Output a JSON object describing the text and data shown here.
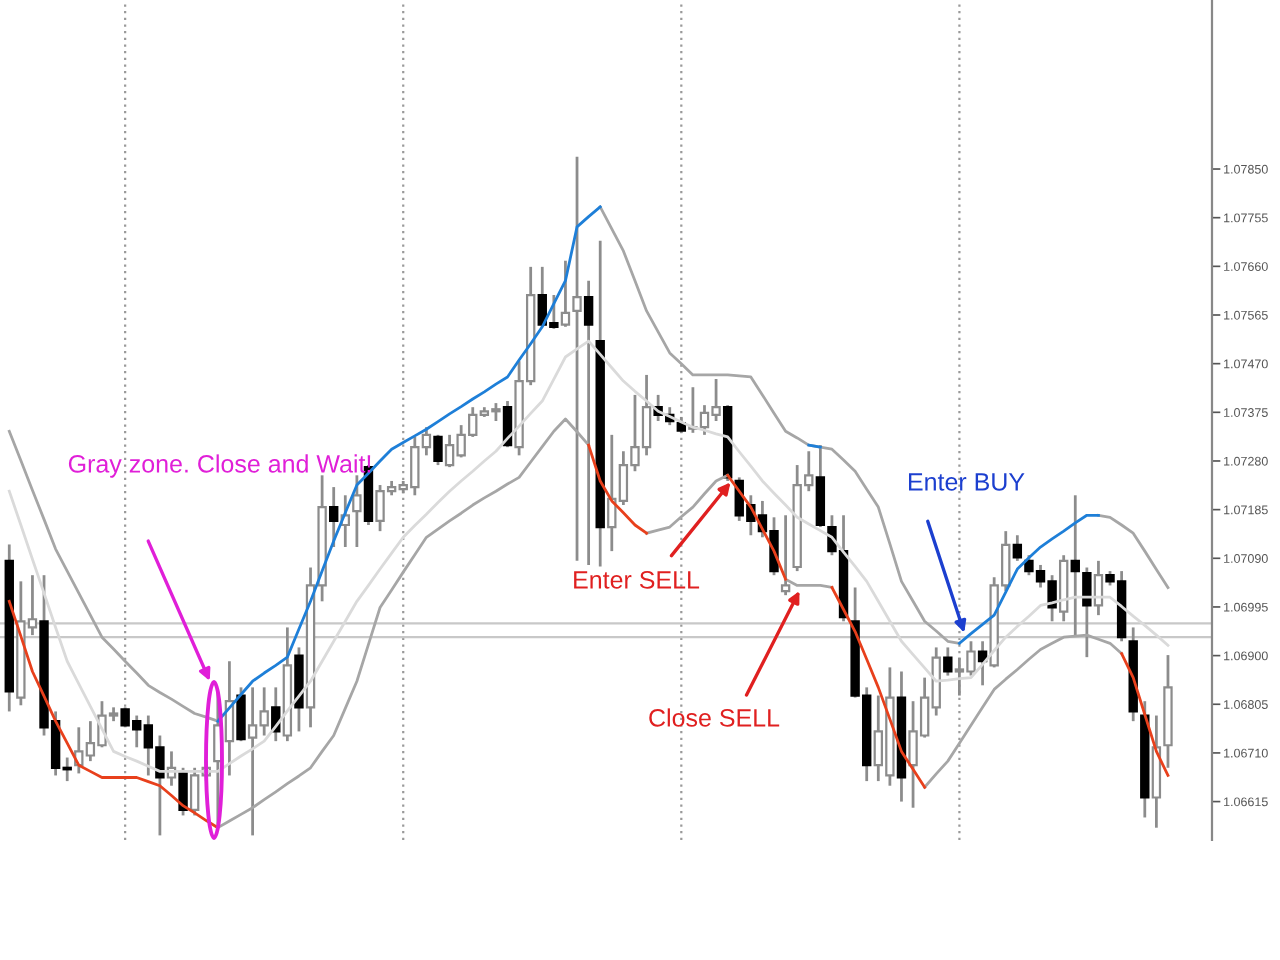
{
  "chart_data": {
    "type": "candlestick",
    "categories": [
      null,
      null,
      null,
      null,
      null,
      null,
      null,
      null,
      null,
      null,
      null,
      null,
      null,
      null,
      null,
      null,
      null,
      null,
      null,
      null,
      null,
      null,
      null,
      null,
      null,
      null,
      null,
      null,
      null,
      null,
      null,
      null,
      null,
      null,
      null,
      null,
      null,
      null,
      null,
      null,
      null,
      null,
      null,
      null,
      null,
      null,
      null,
      null,
      null,
      null,
      null,
      null,
      null,
      null,
      null,
      null,
      null,
      null,
      null,
      null,
      null,
      null,
      null,
      null,
      null,
      null,
      null,
      null,
      null,
      null,
      null,
      null,
      null,
      null,
      null,
      null,
      null,
      null,
      null,
      null,
      null,
      null,
      null,
      null,
      null,
      null,
      null,
      null,
      null,
      null,
      null,
      null,
      null,
      null,
      null,
      null,
      null,
      null,
      null,
      null,
      null
    ],
    "ohlc": [
      [
        1.07085,
        1.07117,
        1.06791,
        1.0683
      ],
      [
        1.06818,
        1.07045,
        1.06803,
        1.06967
      ],
      [
        1.06955,
        1.07057,
        1.0694,
        1.06971
      ],
      [
        1.06967,
        1.07057,
        1.06744,
        1.0676
      ],
      [
        1.06772,
        1.06791,
        1.06666,
        1.06681
      ],
      [
        1.06681,
        1.06701,
        1.06655,
        1.06678
      ],
      [
        1.06686,
        1.0676,
        1.0667,
        1.06713
      ],
      [
        1.06705,
        1.06772,
        1.06694,
        1.06729
      ],
      [
        1.06725,
        1.06811,
        1.06721,
        1.06783
      ],
      [
        1.06783,
        1.06799,
        1.06772,
        1.06787
      ],
      [
        1.06795,
        1.06799,
        1.0676,
        1.06764
      ],
      [
        1.06772,
        1.06783,
        1.06721,
        1.06756
      ],
      [
        1.06764,
        1.06783,
        1.06666,
        1.06721
      ],
      [
        1.06721,
        1.06744,
        1.06549,
        1.06662
      ],
      [
        1.06662,
        1.06713,
        1.06646,
        1.06681
      ],
      [
        1.0667,
        1.06681,
        1.06588,
        1.06599
      ],
      [
        1.06599,
        1.06681,
        1.06588,
        1.06666
      ],
      [
        1.06666,
        1.06694,
        1.06655,
        1.06681
      ],
      [
        1.06694,
        1.0683,
        1.06568,
        1.06764
      ],
      [
        1.06733,
        1.06889,
        1.06666,
        1.06811
      ],
      [
        1.06822,
        1.06838,
        1.06733,
        1.06737
      ],
      [
        1.0674,
        1.06838,
        1.06549,
        1.06764
      ],
      [
        1.06764,
        1.06838,
        1.06744,
        1.06791
      ],
      [
        1.06799,
        1.06838,
        1.06733,
        1.06752
      ],
      [
        1.06744,
        1.06955,
        1.06733,
        1.06881
      ],
      [
        1.069,
        1.06916,
        1.06752,
        1.06799
      ],
      [
        1.06799,
        1.07072,
        1.0676,
        1.07037
      ],
      [
        1.07037,
        1.07252,
        1.07006,
        1.0719
      ],
      [
        1.0719,
        1.07229,
        1.07112,
        1.07163
      ],
      [
        1.07155,
        1.07213,
        1.07112,
        1.07174
      ],
      [
        1.07182,
        1.07252,
        1.07112,
        1.07213
      ],
      [
        1.07268,
        1.07272,
        1.07155,
        1.07163
      ],
      [
        1.07163,
        1.07233,
        1.07143,
        1.07221
      ],
      [
        1.07221,
        1.07241,
        1.07213,
        1.07229
      ],
      [
        1.07225,
        1.07241,
        1.07217,
        1.07233
      ],
      [
        1.07229,
        1.07327,
        1.07213,
        1.07307
      ],
      [
        1.07307,
        1.07346,
        1.07291,
        1.07331
      ],
      [
        1.07327,
        1.07331,
        1.07272,
        1.0728
      ],
      [
        1.07272,
        1.07331,
        1.07268,
        1.07311
      ],
      [
        1.07291,
        1.0735,
        1.07287,
        1.07331
      ],
      [
        1.07331,
        1.07385,
        1.07327,
        1.0737
      ],
      [
        1.0737,
        1.07385,
        1.07366,
        1.07377
      ],
      [
        1.07377,
        1.07393,
        1.07358,
        1.07381
      ],
      [
        1.07385,
        1.07397,
        1.07307,
        1.07311
      ],
      [
        1.07307,
        1.07475,
        1.07291,
        1.07436
      ],
      [
        1.07436,
        1.07659,
        1.07428,
        1.07604
      ],
      [
        1.07604,
        1.07659,
        1.07542,
        1.07546
      ],
      [
        1.07549,
        1.07604,
        1.07538,
        1.07542
      ],
      [
        1.07546,
        1.07671,
        1.07542,
        1.07569
      ],
      [
        1.07573,
        1.07874,
        1.07085,
        1.076
      ],
      [
        1.076,
        1.07632,
        1.07077,
        1.07546
      ],
      [
        1.07514,
        1.0771,
        1.07074,
        1.07151
      ],
      [
        1.07151,
        1.07331,
        1.07104,
        1.07206
      ],
      [
        1.07202,
        1.07299,
        1.07194,
        1.07272
      ],
      [
        1.07272,
        1.07409,
        1.0726,
        1.07307
      ],
      [
        1.07307,
        1.07448,
        1.07291,
        1.07385
      ],
      [
        1.07385,
        1.07409,
        1.07358,
        1.0737
      ],
      [
        1.0737,
        1.07385,
        1.0735,
        1.07358
      ],
      [
        1.07354,
        1.07366,
        1.07335,
        1.07339
      ],
      [
        1.07343,
        1.07424,
        1.07335,
        1.07346
      ],
      [
        1.07346,
        1.07389,
        1.07331,
        1.07374
      ],
      [
        1.0737,
        1.0744,
        1.07358,
        1.07385
      ],
      [
        1.07385,
        1.07389,
        1.07241,
        1.07248
      ],
      [
        1.07241,
        1.07248,
        1.07163,
        1.07174
      ],
      [
        1.07194,
        1.07213,
        1.07135,
        1.07163
      ],
      [
        1.07174,
        1.07202,
        1.07131,
        1.07143
      ],
      [
        1.07143,
        1.0717,
        1.07057,
        1.07065
      ],
      [
        1.07026,
        1.07174,
        1.07018,
        1.07037
      ],
      [
        1.07073,
        1.07272,
        1.07065,
        1.07233
      ],
      [
        1.07233,
        1.07299,
        1.07221,
        1.07252
      ],
      [
        1.07248,
        1.07311,
        1.07151,
        1.07155
      ],
      [
        1.07151,
        1.07174,
        1.07096,
        1.07104
      ],
      [
        1.07104,
        1.07174,
        1.06967,
        1.06975
      ],
      [
        1.06967,
        1.07033,
        1.06818,
        1.06822
      ],
      [
        1.06822,
        1.06838,
        1.06655,
        1.06686
      ],
      [
        1.06686,
        1.06822,
        1.06655,
        1.06752
      ],
      [
        1.06666,
        1.06877,
        1.06646,
        1.06818
      ],
      [
        1.06818,
        1.06869,
        1.06615,
        1.06662
      ],
      [
        1.06686,
        1.06811,
        1.06603,
        1.06752
      ],
      [
        1.06744,
        1.06857,
        1.0674,
        1.06818
      ],
      [
        1.06799,
        1.06916,
        1.06783,
        1.06896
      ],
      [
        1.06896,
        1.06916,
        1.06861,
        1.06869
      ],
      [
        1.06869,
        1.06896,
        1.06822,
        1.06873
      ],
      [
        1.06869,
        1.06928,
        1.06861,
        1.06908
      ],
      [
        1.06908,
        1.06928,
        1.06842,
        1.06889
      ],
      [
        1.06881,
        1.07053,
        1.06877,
        1.07037
      ],
      [
        1.07037,
        1.07143,
        1.07026,
        1.07116
      ],
      [
        1.07116,
        1.07135,
        1.07085,
        1.07092
      ],
      [
        1.07085,
        1.07096,
        1.07057,
        1.07065
      ],
      [
        1.07065,
        1.07077,
        1.07033,
        1.07045
      ],
      [
        1.07045,
        1.07057,
        1.06967,
        1.06994
      ],
      [
        1.06986,
        1.07096,
        1.06967,
        1.07085
      ],
      [
        1.07085,
        1.07213,
        1.0694,
        1.07065
      ],
      [
        1.07061,
        1.07072,
        1.06897,
        1.06998
      ],
      [
        1.06998,
        1.07085,
        1.06979,
        1.07057
      ],
      [
        1.07057,
        1.07065,
        1.07037,
        1.07045
      ],
      [
        1.07045,
        1.07065,
        1.06928,
        1.06936
      ],
      [
        1.06928,
        1.06955,
        1.06772,
        1.06791
      ],
      [
        1.06783,
        1.06811,
        1.06584,
        1.06623
      ],
      [
        1.06623,
        1.06783,
        1.06564,
        1.06721
      ],
      [
        1.06725,
        1.06901,
        1.06681,
        1.06838
      ]
    ],
    "series": [
      {
        "type": "line",
        "color": "#a6a6a6",
        "values": [
          1.07338,
          1.07281,
          1.07223,
          1.07166,
          1.07108,
          1.07065,
          1.07022,
          1.06979,
          1.06936,
          1.06913,
          1.06889,
          1.06866,
          1.06842,
          1.06828,
          1.06815,
          1.06801,
          1.06787,
          1.0678,
          1.06772,
          null,
          null,
          null,
          null,
          null,
          null,
          null,
          null,
          null,
          null,
          null,
          null,
          null,
          null,
          null,
          null,
          null,
          null,
          null,
          null,
          null,
          null,
          null,
          null,
          null,
          null,
          null,
          null,
          null,
          null,
          null,
          null,
          1.07776,
          1.07733,
          1.0769,
          1.07632,
          1.07573,
          1.07532,
          1.07491,
          1.0747,
          1.07448,
          1.07448,
          1.07448,
          1.07448,
          1.07446,
          1.07444,
          1.07409,
          1.07373,
          1.07338,
          1.07325,
          1.07311,
          1.07307,
          1.07303,
          1.07282,
          1.0726,
          1.07225,
          1.0719,
          1.07118,
          1.07045,
          1.07006,
          1.06967,
          1.06948,
          1.06928,
          1.06924,
          null,
          null,
          null,
          null,
          null,
          null,
          null,
          null,
          null,
          null,
          null,
          1.07174,
          1.0717,
          1.07155,
          1.07139,
          1.07104,
          1.07068,
          1.07033
        ]
      },
      {
        "type": "line",
        "color": "#dadada",
        "values": [
          1.07221,
          1.07155,
          1.07088,
          1.07022,
          1.06955,
          1.06889,
          1.06845,
          1.06801,
          1.06757,
          1.06713,
          1.06703,
          1.06694,
          1.06684,
          1.06674,
          1.06674,
          1.06674,
          1.06674,
          1.06674,
          1.06674,
          1.06689,
          1.06704,
          1.06718,
          1.06733,
          1.06762,
          1.06792,
          1.06821,
          1.0685,
          1.06889,
          1.06928,
          1.06967,
          1.07006,
          1.07037,
          1.07069,
          1.071,
          1.07131,
          1.07154,
          1.07176,
          1.07199,
          1.07221,
          1.07241,
          1.0726,
          1.0728,
          1.07299,
          1.07324,
          1.07348,
          1.07373,
          1.07397,
          1.0744,
          1.07483,
          1.07499,
          1.07514,
          1.07488,
          1.07462,
          1.07436,
          1.07416,
          1.07397,
          1.07377,
          1.07367,
          1.07356,
          1.07346,
          1.0734,
          1.07333,
          1.07327,
          1.07298,
          1.0727,
          1.07241,
          1.07217,
          1.07194,
          1.0717,
          1.07157,
          1.07144,
          1.07131,
          1.07102,
          1.07074,
          1.07045,
          1.07006,
          1.06967,
          1.06928,
          1.06902,
          1.06876,
          1.0685,
          1.06852,
          1.06855,
          1.06857,
          1.06883,
          1.0691,
          1.06936,
          1.06957,
          1.06977,
          1.06998,
          1.07003,
          1.07009,
          1.07014,
          1.07014,
          1.07014,
          1.07014,
          1.06996,
          1.06977,
          1.06959,
          1.0694,
          1.0692
        ]
      },
      {
        "type": "line",
        "color": "#a6a6a6",
        "values": [
          null,
          null,
          null,
          null,
          null,
          null,
          null,
          null,
          null,
          null,
          null,
          null,
          null,
          null,
          null,
          null,
          null,
          null,
          1.06564,
          1.06577,
          1.0659,
          1.06603,
          1.06619,
          1.06634,
          1.0665,
          1.06665,
          1.06681,
          1.06713,
          1.06744,
          1.06797,
          1.0685,
          1.06922,
          1.06994,
          1.07028,
          1.07063,
          1.07097,
          1.07131,
          1.07147,
          1.07163,
          1.07178,
          1.07194,
          1.07208,
          1.07221,
          1.07235,
          1.07248,
          1.07278,
          1.07308,
          1.07338,
          1.07362,
          1.07337,
          1.07311,
          null,
          null,
          null,
          null,
          1.07139,
          1.07145,
          1.07151,
          1.07171,
          1.0719,
          1.07216,
          1.07241,
          1.07252,
          null,
          null,
          null,
          null,
          1.07049,
          1.07037,
          1.07037,
          1.07037,
          1.07033,
          null,
          null,
          null,
          null,
          null,
          null,
          null,
          1.06643,
          1.06669,
          1.06694,
          1.06729,
          1.06764,
          1.06799,
          1.06834,
          1.06854,
          1.06873,
          1.06893,
          1.06912,
          1.06924,
          1.06936,
          1.06938,
          1.0694,
          1.06932,
          1.06924,
          1.06904,
          null,
          null,
          null,
          null
        ]
      },
      {
        "type": "line",
        "color": "#1e7fd8",
        "values": [
          null,
          null,
          null,
          null,
          null,
          null,
          null,
          null,
          null,
          null,
          null,
          null,
          null,
          null,
          null,
          null,
          null,
          null,
          1.06772,
          1.06798,
          1.06824,
          1.0685,
          1.06866,
          1.06881,
          1.06897,
          1.06952,
          1.07006,
          1.07065,
          1.07124,
          1.07179,
          1.07233,
          1.07256,
          1.0728,
          1.07303,
          1.07316,
          1.07329,
          1.07342,
          1.07357,
          1.07372,
          1.07386,
          1.07401,
          1.07415,
          1.0743,
          1.07444,
          1.07477,
          1.07509,
          1.07542,
          1.07587,
          1.07632,
          1.07737,
          1.07757,
          1.07776,
          null,
          null,
          null,
          null,
          null,
          null,
          null,
          null,
          null,
          null,
          null,
          null,
          null,
          null,
          null,
          null,
          null,
          1.07311,
          1.07307,
          null,
          null,
          null,
          null,
          null,
          null,
          null,
          null,
          null,
          null,
          null,
          1.06924,
          1.06943,
          1.06961,
          1.06979,
          1.07024,
          1.07069,
          1.07091,
          1.07112,
          1.07128,
          1.07143,
          1.07159,
          1.07174,
          1.07174,
          null,
          null,
          null,
          null,
          null,
          null
        ]
      },
      {
        "type": "line",
        "color": "#e8401c",
        "values": [
          1.07006,
          1.06938,
          1.06869,
          1.06821,
          1.06772,
          1.06729,
          1.06686,
          1.06674,
          1.06662,
          1.06662,
          1.06662,
          1.06662,
          1.06654,
          1.06646,
          1.06627,
          1.06607,
          1.06593,
          1.06578,
          1.06564,
          null,
          null,
          null,
          null,
          null,
          null,
          null,
          null,
          null,
          null,
          null,
          null,
          null,
          null,
          null,
          null,
          null,
          null,
          null,
          null,
          null,
          null,
          null,
          null,
          null,
          null,
          null,
          null,
          null,
          null,
          null,
          1.07311,
          1.07241,
          1.07202,
          1.07179,
          1.07155,
          1.07139,
          null,
          null,
          null,
          null,
          null,
          null,
          1.07252,
          1.07221,
          1.0719,
          1.07147,
          1.07104,
          1.07049,
          null,
          null,
          null,
          1.07033,
          1.0699,
          1.06947,
          1.06893,
          1.06838,
          1.06776,
          1.06713,
          1.06678,
          1.06643,
          null,
          null,
          null,
          null,
          null,
          null,
          null,
          null,
          null,
          null,
          null,
          null,
          null,
          null,
          null,
          null,
          1.06904,
          1.06857,
          1.06785,
          1.06713,
          1.06666
        ]
      }
    ],
    "ylim": [
      1.0654,
      1.0818
    ],
    "yticks": [
      1.06615,
      {
        "value": 1.0671,
        "label": "1.06710"
      },
      1.06805,
      {
        "value": 1.069,
        "label": "1.06900"
      },
      1.06995,
      {
        "value": 1.0709,
        "label": "1.07090"
      },
      1.07185,
      {
        "value": 1.0728,
        "label": "1.07280"
      },
      1.07375,
      {
        "value": 1.0747,
        "label": "1.07470"
      },
      1.07565,
      {
        "value": 1.0766,
        "label": "1.07660"
      },
      1.07755,
      {
        "value": 1.0785,
        "label": "1.07850"
      }
    ],
    "ref_lines": [
      {
        "axis": "y",
        "value": 1.06963,
        "color": "#c8c8c8"
      },
      {
        "axis": "y",
        "value": 1.06936,
        "color": "#c8c8c8"
      }
    ],
    "annotations": [
      "Gray zone. Close and Wait!",
      "Enter SELL",
      "Close SELL",
      "Enter BUY"
    ],
    "tick_labels": "y",
    "grid": "x"
  }
}
